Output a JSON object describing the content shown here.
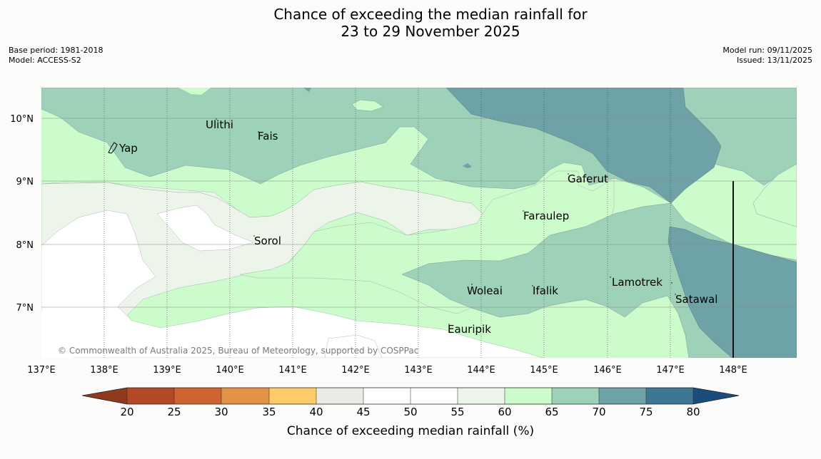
{
  "title": {
    "line1": "Chance of exceeding the median rainfall for",
    "line2": "23 to 29 November 2025"
  },
  "meta": {
    "base_period": "Base period: 1981-2018",
    "model": "Model: ACCESS-S2",
    "model_run": "Model run: 09/11/2025",
    "issued": "Issued: 13/11/2025"
  },
  "map": {
    "lat_ticks": [
      "10°N",
      "9°N",
      "8°N",
      "7°N"
    ],
    "lon_ticks": [
      "137°E",
      "138°E",
      "139°E",
      "140°E",
      "141°E",
      "142°E",
      "143°E",
      "144°E",
      "145°E",
      "146°E",
      "147°E",
      "148°E"
    ],
    "places": [
      "Yap",
      "Ulithi",
      "Fais",
      "Sorol",
      "Gaferut",
      "Faraulep",
      "Woleai",
      "Ifalik",
      "Lamotrek",
      "Satawal",
      "Eauripik"
    ],
    "copyright": "© Commonwealth of Australia 2025, Bureau of Meteorology, supported by COSPPac"
  },
  "colorbar": {
    "ticks": [
      "20",
      "25",
      "30",
      "35",
      "40",
      "45",
      "50",
      "55",
      "60",
      "65",
      "70",
      "75",
      "80"
    ],
    "label": "Chance of exceeding median rainfall (%)",
    "colors": {
      "below_20": "#8e3a1f",
      "c20_25": "#b34a25",
      "c25_30": "#cf6430",
      "c30_35": "#e29245",
      "c35_40": "#fdcc68",
      "c40_45": "#e9ebe5",
      "c45_50": "#ffffff",
      "c50_55": "#ffffff",
      "c55_60": "#edf5ea",
      "c60_65": "#ccfccb",
      "c65_70": "#9dd1b8",
      "c70_75": "#6da3a6",
      "c75_80": "#3e7794",
      "above_80": "#1b4c7c"
    }
  }
}
